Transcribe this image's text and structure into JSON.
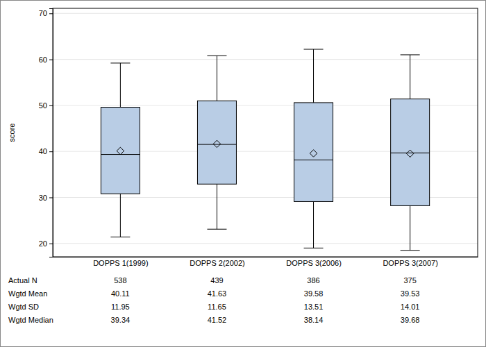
{
  "chart_data": {
    "type": "box",
    "y_label": "score",
    "categories": [
      "DOPPS 1(1999)",
      "DOPPS 2(2002)",
      "DOPPS 3(2006)",
      "DOPPS 3(2007)"
    ],
    "whisker_low": [
      21.4,
      23.1,
      19.0,
      18.5
    ],
    "q1": [
      30.8,
      32.9,
      29.1,
      28.2
    ],
    "q3": [
      49.6,
      51.0,
      50.6,
      51.4
    ],
    "whisker_high": [
      59.2,
      60.8,
      62.2,
      61.0
    ],
    "n": [
      538,
      439,
      386,
      375
    ],
    "mean": [
      40.11,
      41.63,
      39.58,
      39.53
    ],
    "sd": [
      11.95,
      11.65,
      13.51,
      14.01
    ],
    "median": [
      39.34,
      41.52,
      38.14,
      39.68
    ],
    "table_labels": {
      "n": "Actual N",
      "mean": "Wgtd Mean",
      "sd": "Wgtd SD",
      "median": "Wgtd Median"
    },
    "color": "#b9cde5",
    "ylim": [
      17.1,
      71.1
    ],
    "yticks": [
      20,
      30,
      40,
      50,
      60,
      70
    ],
    "grid": true
  }
}
